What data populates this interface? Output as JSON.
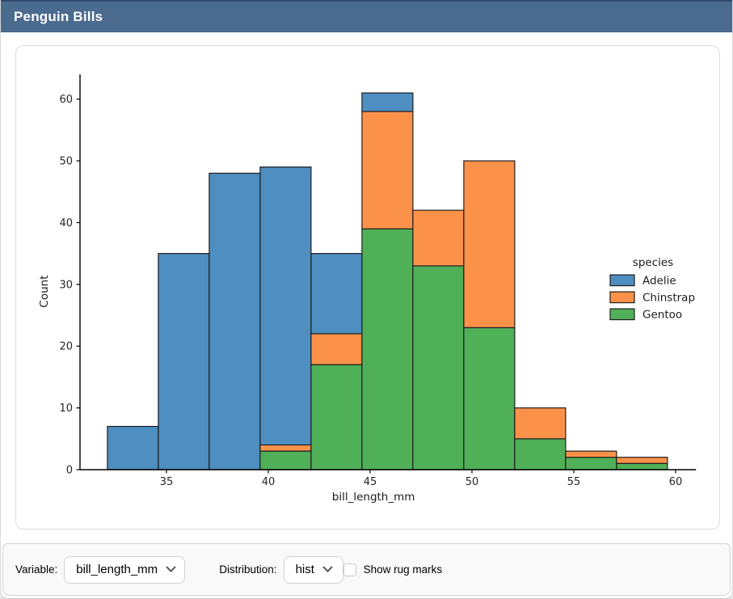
{
  "header": {
    "title": "Penguin Bills"
  },
  "colors": {
    "header_bg": "#4a6a8e",
    "header_top_line": "#2e4a6b",
    "adelie": "#4e8ec0",
    "chinstrap": "#fc9149",
    "gentoo": "#50b058",
    "bar_edge": "#1f1f1f",
    "axis": "#000000",
    "tick_text": "#262626"
  },
  "controls": {
    "variable_label": "Variable:",
    "variable_value": "bill_length_mm",
    "distribution_label": "Distribution:",
    "distribution_value": "hist",
    "rug_label": "Show rug marks",
    "rug_checked": false
  },
  "chart_data": {
    "type": "bar",
    "subtype": "stacked-histogram",
    "xlabel": "bill_length_mm",
    "ylabel": "Count",
    "bin_edges": [
      32.1,
      34.6,
      37.1,
      39.6,
      42.1,
      44.6,
      47.1,
      49.6,
      52.1,
      54.6,
      57.1,
      59.6
    ],
    "series": [
      {
        "name": "Adelie",
        "color": "#4e8ec0",
        "values": [
          7,
          35,
          48,
          45,
          13,
          3,
          0,
          0,
          0,
          0,
          0
        ]
      },
      {
        "name": "Chinstrap",
        "color": "#fc9149",
        "values": [
          0,
          0,
          0,
          1,
          5,
          19,
          9,
          27,
          5,
          1,
          1
        ]
      },
      {
        "name": "Gentoo",
        "color": "#50b058",
        "values": [
          0,
          0,
          0,
          3,
          17,
          39,
          33,
          23,
          5,
          2,
          1
        ]
      }
    ],
    "bin_totals": [
      7,
      35,
      48,
      49,
      35,
      61,
      42,
      50,
      10,
      3,
      2
    ],
    "stack_order_bottom_to_top": [
      "Gentoo",
      "Chinstrap",
      "Adelie"
    ],
    "xticks": [
      35,
      40,
      45,
      50,
      55,
      60
    ],
    "yticks": [
      0,
      10,
      20,
      30,
      40,
      50,
      60
    ],
    "xlim": [
      30.75,
      61
    ],
    "ylim": [
      0,
      64
    ],
    "grid": false,
    "legend": {
      "title": "species",
      "entries": [
        "Adelie",
        "Chinstrap",
        "Gentoo"
      ],
      "position": "right"
    }
  }
}
